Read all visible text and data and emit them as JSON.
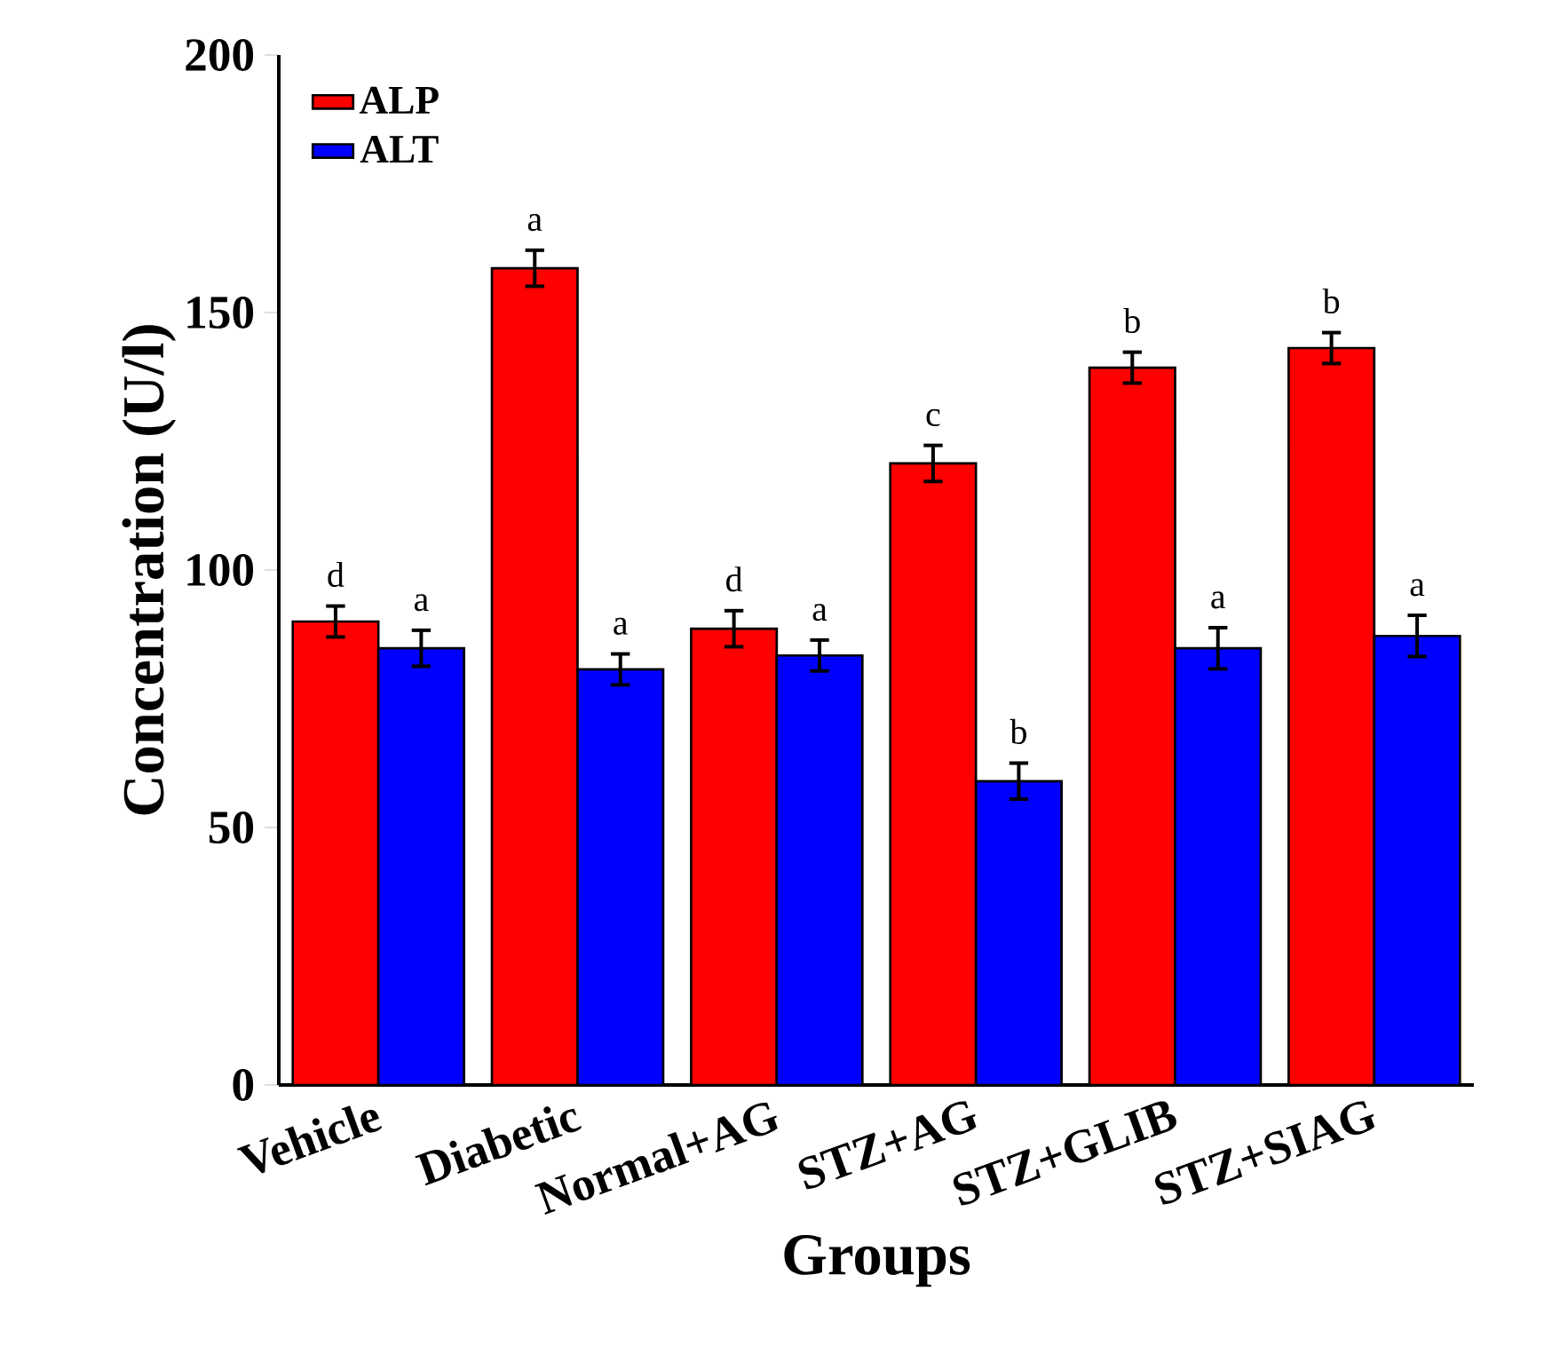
{
  "chart_data": {
    "type": "bar",
    "xlabel": "Groups",
    "ylabel": "Concentration (U/l)",
    "categories": [
      "Vehicle",
      "Diabetic",
      "Normal+AG",
      "STZ+AG",
      "STZ+GLIB",
      "STZ+SIAG"
    ],
    "series": [
      {
        "name": "ALP",
        "color": "#ff0000",
        "values": [
          90,
          158.6,
          88.6,
          120.7,
          139.3,
          143.1
        ],
        "errors": [
          3,
          3.5,
          3.5,
          3.5,
          3,
          3
        ]
      },
      {
        "name": "ALT",
        "color": "#0000ff",
        "values": [
          84.8,
          80.7,
          83.4,
          59,
          84.8,
          87.2
        ],
        "errors": [
          3.5,
          3,
          3,
          3.5,
          4,
          4
        ]
      }
    ],
    "ylim": [
      0,
      200
    ],
    "yticks": [
      0,
      50,
      100,
      150,
      200
    ],
    "grid": false,
    "legend": "top left",
    "annotations": [
      "d",
      "a",
      "a",
      "a",
      "d",
      "a",
      "c",
      "b",
      "b",
      "a",
      "b",
      "a"
    ]
  }
}
